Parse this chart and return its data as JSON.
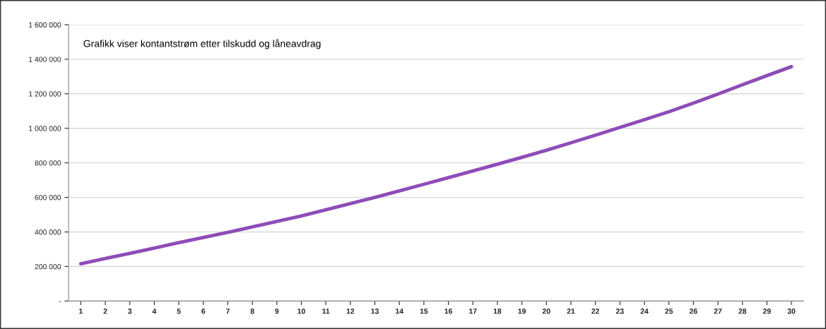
{
  "chart_data": {
    "type": "line",
    "title": "Grafikk viser kontantstrøm etter tilskudd og låneavdrag",
    "categories": [
      "1",
      "2",
      "3",
      "4",
      "5",
      "6",
      "7",
      "8",
      "9",
      "10",
      "11",
      "12",
      "13",
      "14",
      "15",
      "16",
      "17",
      "18",
      "19",
      "20",
      "21",
      "22",
      "23",
      "24",
      "25",
      "26",
      "27",
      "28",
      "29",
      "30"
    ],
    "series": [
      {
        "color": "#8e4cb8",
        "values": [
          216000,
          246000,
          276000,
          307000,
          338000,
          368000,
          398000,
          429000,
          461000,
          493000,
          528000,
          564000,
          600000,
          638000,
          676000,
          714000,
          753000,
          792000,
          832000,
          873000,
          916000,
          960000,
          1005000,
          1050000,
          1096000,
          1146000,
          1198000,
          1252000,
          1305000,
          1357000
        ]
      }
    ],
    "ylim": [
      0,
      1600000
    ],
    "yticks": [
      {
        "value": 0,
        "label": "-"
      },
      {
        "value": 200000,
        "label": "200 000"
      },
      {
        "value": 400000,
        "label": "400 000"
      },
      {
        "value": 600000,
        "label": "600 000"
      },
      {
        "value": 800000,
        "label": "800 000"
      },
      {
        "value": 1000000,
        "label": "1 000 000"
      },
      {
        "value": 1200000,
        "label": "1 200 000"
      },
      {
        "value": 1400000,
        "label": "1 400 000"
      },
      {
        "value": 1600000,
        "label": "1 600 000"
      }
    ],
    "grid": "y",
    "legend": false,
    "marker": "none",
    "line_style": "solid"
  }
}
